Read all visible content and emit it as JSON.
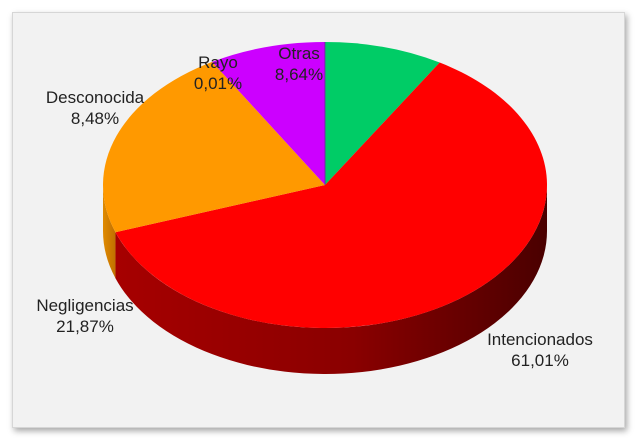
{
  "chart_data": {
    "type": "pie",
    "title": "",
    "categories": [
      "Intencionados",
      "Negligencias",
      "Desconocida",
      "Rayo",
      "Otras"
    ],
    "values": [
      61.01,
      21.87,
      8.48,
      0.01,
      8.64
    ],
    "value_labels": [
      "61,01%",
      "21,87%",
      "8,48%",
      "0,01%",
      "8,64%"
    ],
    "colors": [
      "#ff0000",
      "#ff9900",
      "#cc00ff",
      "#7030a0",
      "#00cc66"
    ],
    "style": "3d",
    "legend": "none"
  }
}
